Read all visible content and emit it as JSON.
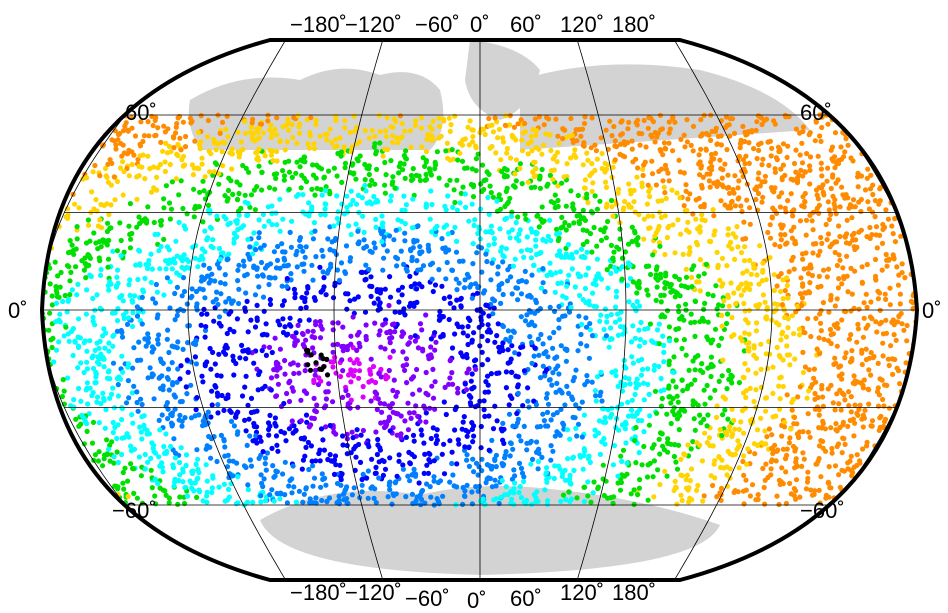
{
  "map": {
    "projection": "winkel-tripel",
    "center_longitude": 0,
    "land_color": "#d3d3d3",
    "ocean_color": "#ffffff",
    "grid_color": "#000000",
    "frame_color": "#000000",
    "point_data_color": "#000000",
    "data_latitude_range": [
      -60,
      60
    ],
    "colormap": [
      "#ff8c00",
      "#ffd400",
      "#00e000",
      "#00ffff",
      "#0080ff",
      "#0000ff",
      "#8000ff",
      "#dd00ff"
    ],
    "highlight_point_icon": "black-dot-cluster"
  },
  "labels": {
    "lon_top": [
      "−180˚",
      "−120˚",
      "−60˚",
      "0˚",
      "60˚",
      "120˚",
      "180˚"
    ],
    "lon_bottom": [
      "−180˚",
      "−120˚",
      "−60˚",
      "0˚",
      "60˚",
      "120˚",
      "180˚"
    ],
    "lat_left": [
      "60˚",
      "0˚",
      "−60˚"
    ],
    "lat_right": [
      "60˚",
      "0˚",
      "−60˚"
    ]
  }
}
